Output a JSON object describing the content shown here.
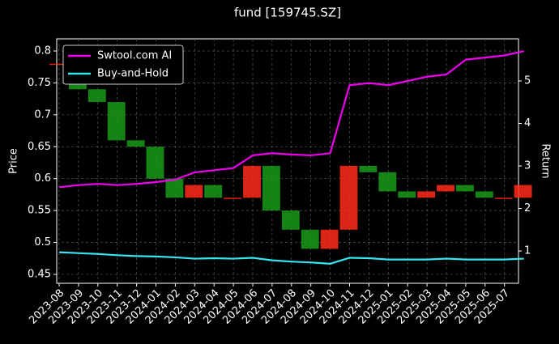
{
  "chart_data": {
    "type": "candle-line",
    "title": "fund [159745.SZ]",
    "ylabel": "Price",
    "y2label": "Return",
    "x": [
      "2023-08",
      "2023-09",
      "2023-10",
      "2023-11",
      "2023-12",
      "2024-01",
      "2024-02",
      "2024-03",
      "2024-04",
      "2024-05",
      "2024-06",
      "2024-07",
      "2024-08",
      "2024-09",
      "2024-10",
      "2024-11",
      "2024-12",
      "2025-01",
      "2025-02",
      "2025-03",
      "2025-04",
      "2025-05",
      "2025-06",
      "2025-07",
      null
    ],
    "price": {
      "name": "Price",
      "up_color": "#ff2a1a",
      "down_color": "#1a9a1a",
      "values": [
        0.78,
        0.74,
        0.72,
        0.66,
        0.65,
        0.6,
        0.57,
        0.59,
        0.57,
        0.57,
        0.62,
        0.55,
        0.52,
        0.49,
        0.52,
        0.62,
        0.61,
        0.58,
        0.57,
        0.58,
        0.59,
        0.58,
        0.57,
        0.57,
        0.59
      ]
    },
    "series": [
      {
        "name": "Swtool.com AI",
        "color": "#ee00ee",
        "axis": "y2",
        "values": [
          2.5,
          2.55,
          2.58,
          2.55,
          2.58,
          2.62,
          2.68,
          2.85,
          2.9,
          2.95,
          3.25,
          3.3,
          3.27,
          3.25,
          3.3,
          4.9,
          4.95,
          4.9,
          5.0,
          5.1,
          5.15,
          5.5,
          5.55,
          5.6,
          5.7
        ]
      },
      {
        "name": "Buy-and-Hold",
        "color": "#33e6f0",
        "axis": "y2",
        "values": [
          0.97,
          0.95,
          0.93,
          0.9,
          0.88,
          0.87,
          0.85,
          0.82,
          0.83,
          0.82,
          0.84,
          0.78,
          0.75,
          0.73,
          0.7,
          0.84,
          0.83,
          0.8,
          0.8,
          0.8,
          0.82,
          0.8,
          0.8,
          0.8,
          0.82
        ]
      }
    ],
    "ylim": [
      0.436,
      0.819
    ],
    "yticks": [
      0.45,
      0.5,
      0.55,
      0.6,
      0.65,
      0.7,
      0.75,
      0.8
    ],
    "y2lim": [
      0.24,
      5.99
    ],
    "y2ticks": [
      1,
      2,
      3,
      4,
      5
    ],
    "grid": true,
    "legend": "upper left"
  }
}
